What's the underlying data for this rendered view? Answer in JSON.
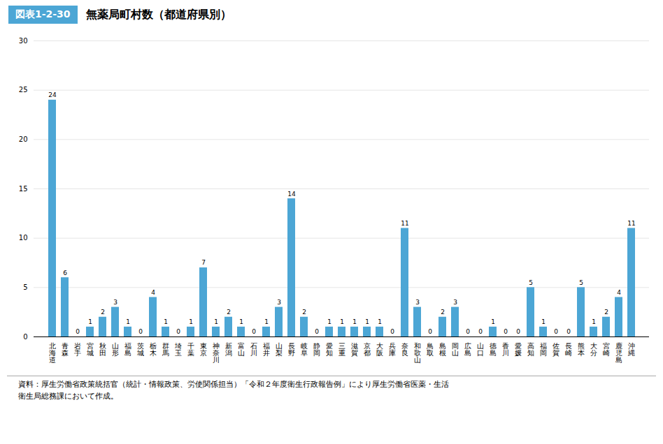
{
  "chart_data": {
    "type": "bar",
    "title": "無薬局町村数（都道府県別）",
    "annotations": [
      "図表1-2-30"
    ],
    "caption": "資料：厚生労働省政策統括官（統計・情報政策、労使関係担当）「令和２年度衛生行政報告例」により厚生労働省医薬・生活\n衛生局総務課において作成。",
    "categories": [
      "北海道",
      "青森",
      "岩手",
      "宮城",
      "秋田",
      "山形",
      "福島",
      "茨城",
      "栃木",
      "群馬",
      "埼玉",
      "千葉",
      "東京",
      "神奈川",
      "新潟",
      "富山",
      "石川",
      "福井",
      "山梨",
      "長野",
      "岐阜",
      "静岡",
      "愛知",
      "三重",
      "滋賀",
      "京都",
      "大阪",
      "兵庫",
      "奈良",
      "和歌山",
      "鳥取",
      "島根",
      "岡山",
      "広島",
      "山口",
      "徳島",
      "香川",
      "愛媛",
      "高知",
      "福岡",
      "佐賀",
      "長崎",
      "熊本",
      "大分",
      "宮崎",
      "鹿児島",
      "沖縄"
    ],
    "values": [
      24,
      6,
      0,
      1,
      2,
      3,
      1,
      0,
      4,
      1,
      0,
      1,
      7,
      1,
      2,
      1,
      0,
      1,
      3,
      14,
      2,
      0,
      1,
      1,
      1,
      1,
      1,
      0,
      11,
      3,
      0,
      2,
      3,
      0,
      0,
      1,
      0,
      0,
      5,
      1,
      0,
      0,
      5,
      1,
      2,
      4,
      11
    ],
    "color": "#4ca6d5",
    "ylim": [
      0,
      30
    ],
    "yticks": [
      0,
      5,
      10,
      15,
      20,
      25,
      30
    ],
    "grid": true,
    "data_labels": true
  }
}
